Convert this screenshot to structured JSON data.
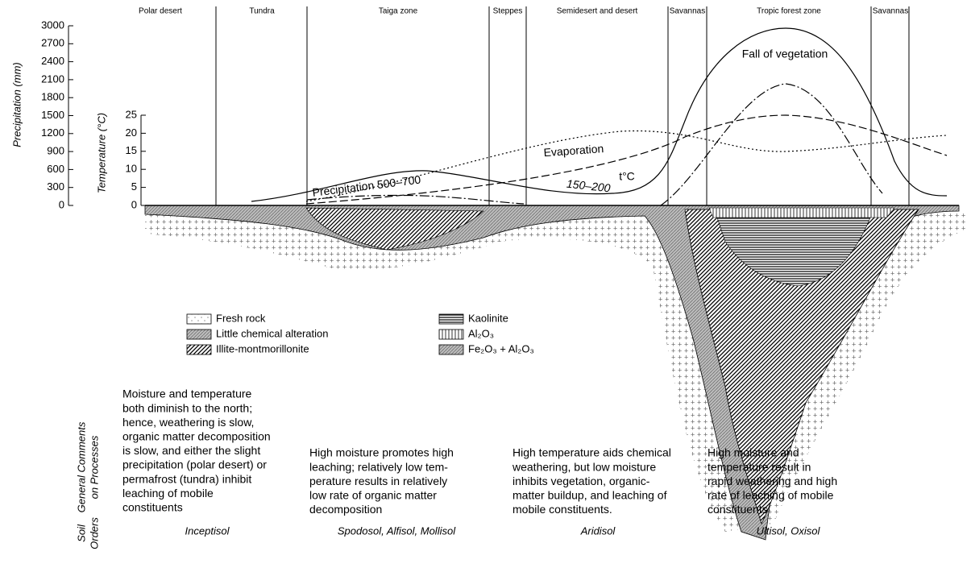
{
  "zones": [
    "Polar desert",
    "Tundra",
    "Taiga zone",
    "Steppes",
    "Semidesert and desert",
    "Savannas",
    "Tropic forest zone",
    "Savannas"
  ],
  "axes": {
    "precipitation": {
      "label": "Precipitation (mm)",
      "ticks": [
        0,
        300,
        600,
        900,
        1200,
        1500,
        1800,
        2100,
        2400,
        2700,
        3000
      ]
    },
    "temperature": {
      "label": "Temperature (°C)",
      "ticks": [
        0,
        5,
        10,
        15,
        20,
        25
      ]
    }
  },
  "curve_labels": {
    "fall": "Fall of vegetation",
    "evaporation": "Evaporation",
    "temperature": "t°C",
    "precipitation": "Precipitation 500–700",
    "precipitation_low": "150–200"
  },
  "legend": [
    "Fresh rock",
    "Little chemical alteration",
    "Illite-montmorillonite",
    "Kaolinite",
    "Al₂O₃",
    "Fe₂O₃ + Al₂O₃"
  ],
  "row_labels": {
    "comments": [
      "General Comments",
      "on Processes"
    ],
    "soil_orders": [
      "Soil",
      "Orders"
    ]
  },
  "comments": [
    [
      "Moisture and temperature",
      "both diminish to the north;",
      "hence, weathering is slow,",
      "organic matter decomposition",
      "is slow, and either the slight",
      "precipitation (polar desert) or",
      "permafrost (tundra) inhibit",
      "leaching of mobile",
      "constituents"
    ],
    [
      "High moisture promotes high",
      "leaching; relatively low tem-",
      "perature results in relatively",
      "low rate of organic matter",
      "decomposition"
    ],
    [
      "High temperature aids chemical",
      "weathering, but low moisture",
      "inhibits vegetation, organic-",
      "matter buildup, and leaching of",
      "mobile constituents."
    ],
    [
      "High moisture and",
      "temperature result in",
      "rapid weathering and high",
      "rate of leaching of mobile",
      "constituents"
    ]
  ],
  "soil_orders": [
    "Inceptisol",
    "Spodosol, Alfisol, Mollisol",
    "Aridisol",
    "Ultisol, Oxisol"
  ]
}
